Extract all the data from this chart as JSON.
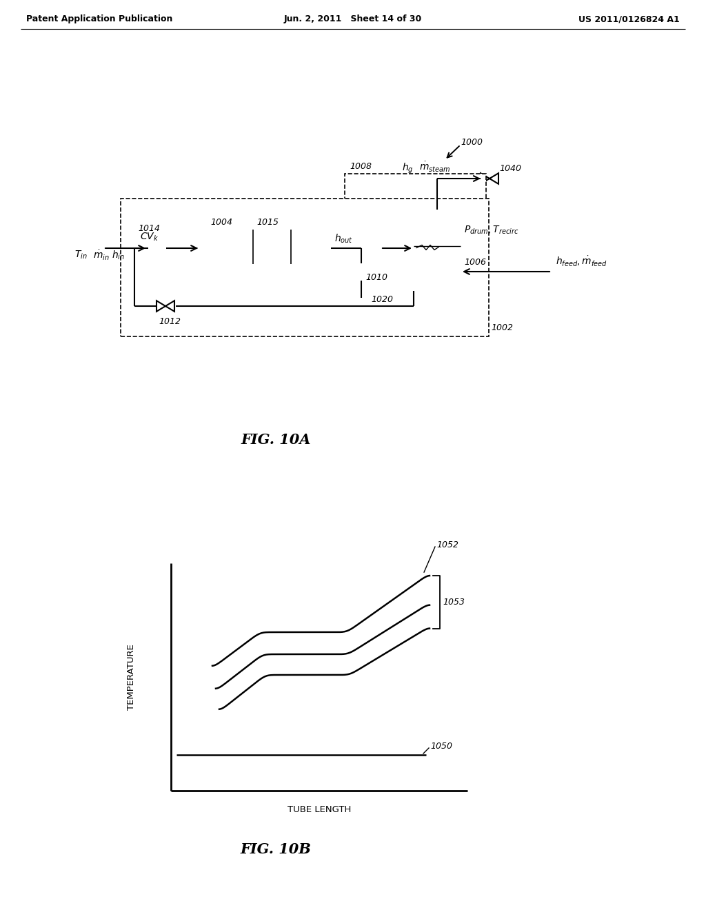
{
  "bg_color": "#ffffff",
  "header_left": "Patent Application Publication",
  "header_mid": "Jun. 2, 2011   Sheet 14 of 30",
  "header_right": "US 2011/0126824 A1",
  "fig10a_label": "FIG. 10A",
  "fig10b_label": "FIG. 10B",
  "label_1000": "1000",
  "label_1002": "1002",
  "label_1004": "1004",
  "label_1006": "1006",
  "label_1008": "1008",
  "label_1010": "1010",
  "label_1012": "1012",
  "label_1014": "1014",
  "label_1015": "1015",
  "label_1020": "1020",
  "label_1040": "1040",
  "label_1050": "1050",
  "label_1052": "1052",
  "label_1053": "1053",
  "text_TEMPERATURE": "TEMPERATURE",
  "text_TUBE_LENGTH": "TUBE LENGTH"
}
